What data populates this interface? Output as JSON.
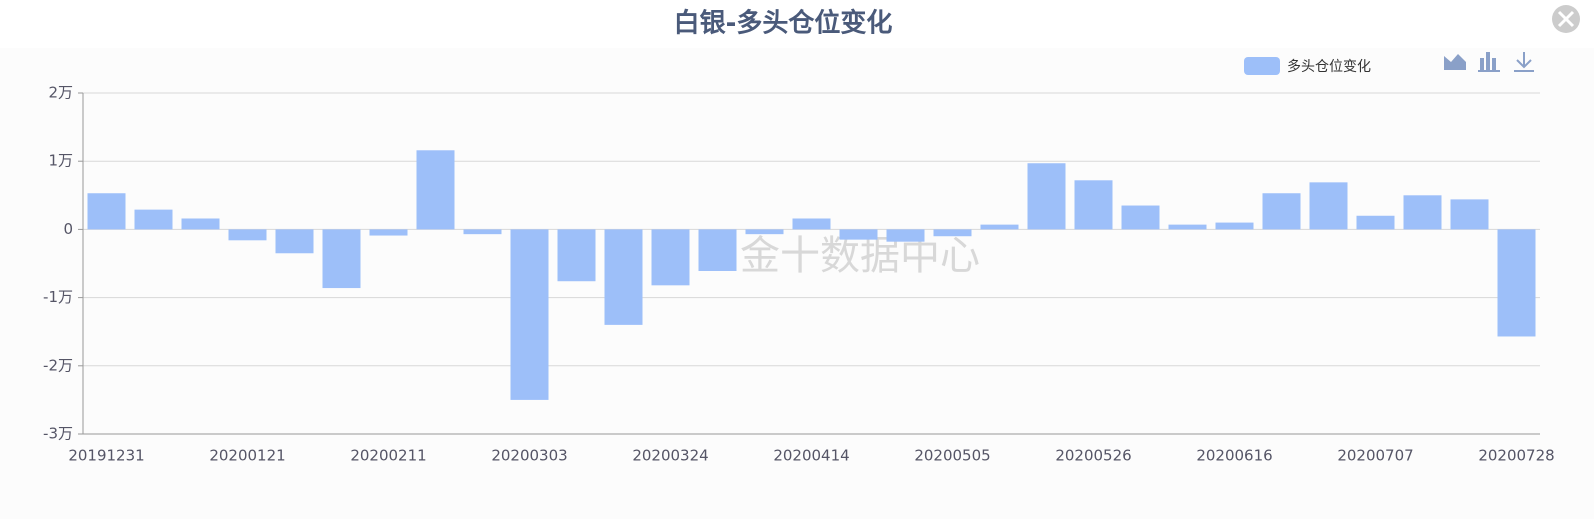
{
  "chart_data": {
    "type": "bar",
    "title": "白银-多头仓位变化",
    "watermark": "金十数据中心",
    "categories": [
      "20191231",
      null,
      null,
      "20200121",
      null,
      null,
      "20200211",
      null,
      null,
      "20200303",
      null,
      null,
      "20200324",
      null,
      null,
      "20200414",
      null,
      null,
      "20200505",
      null,
      null,
      "20200526",
      null,
      null,
      "20200616",
      null,
      null,
      "20200707",
      null,
      null,
      "20200728"
    ],
    "series": [
      {
        "name": "多头仓位变化",
        "color": "#9dbff9",
        "values": [
          5300,
          2900,
          1600,
          -1600,
          -3500,
          -8600,
          -900,
          11600,
          -700,
          -25000,
          -7600,
          -14000,
          -8200,
          -6100,
          -700,
          1600,
          -1500,
          -1800,
          -1000,
          700,
          9700,
          7200,
          3500,
          700,
          1000,
          5300,
          6900,
          2000,
          5000,
          4400,
          -15700
        ]
      }
    ],
    "ylim": [
      -30000,
      20000
    ],
    "yticks": [
      {
        "value": -30000,
        "label": "-3万"
      },
      {
        "value": -20000,
        "label": "-2万"
      },
      {
        "value": -10000,
        "label": "-1万"
      },
      0,
      {
        "value": 10000,
        "label": "1万"
      },
      {
        "value": 20000,
        "label": "2万"
      }
    ],
    "grid": true
  }
}
